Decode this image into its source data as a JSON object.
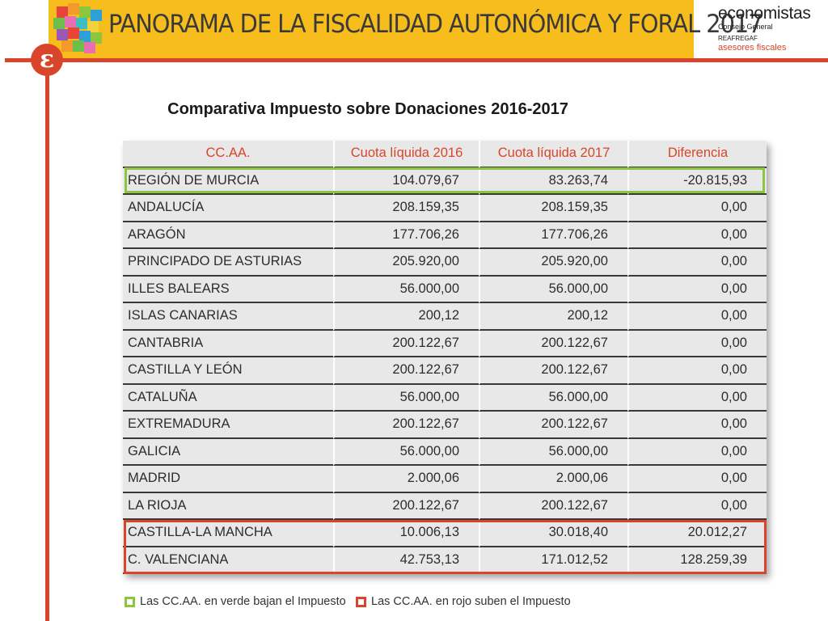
{
  "header": {
    "title": "PANORAMA DE LA FISCALIDAD AUTONÓMICA Y FORAL 2017",
    "circle_glyph": "ε",
    "brand": {
      "name": "economistas",
      "sub": "Consejo General",
      "reaf": "REAFREGAF",
      "asesores": "asesores fiscales"
    }
  },
  "main": {
    "title": "Comparativa Impuesto sobre Donaciones 2016-2017"
  },
  "table": {
    "columns": [
      "CC.AA.",
      "Cuota líquida 2016",
      "Cuota líquida 2017",
      "Diferencia"
    ],
    "rows": [
      [
        "REGIÓN DE MURCIA",
        "104.079,67",
        "83.263,74",
        "-20.815,93"
      ],
      [
        "ANDALUCÍA",
        "208.159,35",
        "208.159,35",
        "0,00"
      ],
      [
        "ARAGÓN",
        "177.706,26",
        "177.706,26",
        "0,00"
      ],
      [
        "PRINCIPADO DE ASTURIAS",
        "205.920,00",
        "205.920,00",
        "0,00"
      ],
      [
        "ILLES BALEARS",
        "56.000,00",
        "56.000,00",
        "0,00"
      ],
      [
        "ISLAS CANARIAS",
        "200,12",
        "200,12",
        "0,00"
      ],
      [
        "CANTABRIA",
        "200.122,67",
        "200.122,67",
        "0,00"
      ],
      [
        "CASTILLA Y LEÓN",
        "200.122,67",
        "200.122,67",
        "0,00"
      ],
      [
        "CATALUÑA",
        "56.000,00",
        "56.000,00",
        "0,00"
      ],
      [
        "EXTREMADURA",
        "200.122,67",
        "200.122,67",
        "0,00"
      ],
      [
        "GALICIA",
        "56.000,00",
        "56.000,00",
        "0,00"
      ],
      [
        "MADRID",
        "2.000,06",
        "2.000,06",
        "0,00"
      ],
      [
        "LA RIOJA",
        "200.122,67",
        "200.122,67",
        "0,00"
      ],
      [
        "CASTILLA-LA MANCHA",
        "10.006,13",
        "30.018,40",
        "20.012,27"
      ],
      [
        "C. VALENCIANA",
        "42.753,13",
        "171.012,52",
        "128.259,39"
      ]
    ]
  },
  "legend": {
    "green": "Las CC.AA. en verde bajan el Impuesto",
    "red": "Las CC.AA. en rojo suben el Impuesto"
  },
  "colors": {
    "accent_red": "#d9452b",
    "header_yellow": "#f7bd1c",
    "highlight_green": "#8cc63e"
  }
}
